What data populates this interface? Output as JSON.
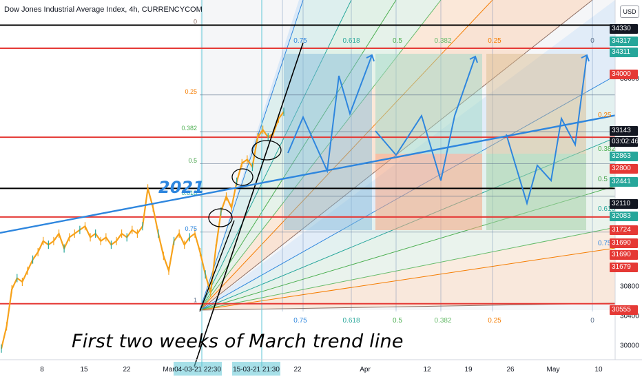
{
  "title": "Dow Jones Industrial Average Index, 4h, CURRENCYCOM",
  "currency_button": "USD",
  "annotations": {
    "year_label": "2021",
    "caption": "First two weeks of March trend line"
  },
  "chart_data": {
    "type": "line",
    "title": "Dow Jones Industrial Average Index, 4h, CURRENCYCOM",
    "y_range": [
      29800,
      34650
    ],
    "y_ticks": [
      33600,
      30800,
      30400,
      30000
    ],
    "x_ticks": [
      "8",
      "15",
      "22",
      "Mar",
      "04-03-21 22:30",
      "15-03-21 21:30",
      "22",
      "Apr",
      "12",
      "19",
      "26",
      "May",
      "10"
    ],
    "horizontal_levels": [
      {
        "value": 34311,
        "color": "#000000"
      },
      {
        "value": 34000,
        "color": "#e53935"
      },
      {
        "value": 32800,
        "color": "#e53935"
      },
      {
        "value": 32110,
        "color": "#000000"
      },
      {
        "value": 31724,
        "color": "#e53935"
      },
      {
        "value": 30555,
        "color": "#e53935"
      }
    ],
    "fib_levels_left": [
      {
        "label": "0",
        "value": 34311
      },
      {
        "label": "0.25",
        "value": 33370
      },
      {
        "label": "0.382",
        "value": 32875
      },
      {
        "label": "0.5",
        "value": 32441
      },
      {
        "label": "0.618",
        "value": 32004
      },
      {
        "label": "0.75",
        "value": 31520
      },
      {
        "label": "1",
        "value": 30555
      }
    ],
    "fan_labels_top": [
      "0.75",
      "0.618",
      "0.5",
      "0.382",
      "0.25",
      "0"
    ],
    "fan_labels_bottom": [
      "0.75",
      "0.618",
      "0.5",
      "0.382",
      "0.25",
      "0"
    ],
    "fib_levels_right": [
      "0.25",
      "0.382",
      "0.5",
      "0.618",
      "0.75"
    ],
    "price_tags": [
      {
        "value": "34330",
        "color": "#131722"
      },
      {
        "value": "34317",
        "color": "#26a69a"
      },
      {
        "value": "34311",
        "color": "#26a69a"
      },
      {
        "value": "34000",
        "color": "#e53935"
      },
      {
        "value": "33143",
        "color": "#131722"
      },
      {
        "value": "03:02:46",
        "color": "#131722"
      },
      {
        "value": "32863",
        "color": "#26a69a"
      },
      {
        "value": "32800",
        "color": "#e53935"
      },
      {
        "value": "32441",
        "color": "#26a69a"
      },
      {
        "value": "32110",
        "color": "#131722"
      },
      {
        "value": "32083",
        "color": "#26a69a"
      },
      {
        "value": "31724",
        "color": "#e53935"
      },
      {
        "value": "31690",
        "color": "#e53935"
      },
      {
        "value": "31690",
        "color": "#e53935"
      },
      {
        "value": "31679",
        "color": "#e53935"
      },
      {
        "value": "30555",
        "color": "#e53935"
      }
    ],
    "series": [
      {
        "values": [
          29950,
          30250,
          30750,
          30900,
          30850,
          31000,
          31150,
          31250,
          31400,
          31350,
          31400,
          31500,
          31300,
          31450,
          31500,
          31550,
          31600,
          31450,
          31500,
          31400,
          31450,
          31350,
          31400,
          31500,
          31450,
          31550,
          31500,
          31600,
          32110,
          31850,
          31500,
          31200,
          31000,
          31400,
          31500,
          31350,
          31450,
          31500,
          31250,
          30950,
          30700,
          31300,
          31800,
          32000,
          31850,
          32200,
          32450,
          32500,
          32400,
          32800,
          32900,
          32800,
          32850,
          33050,
          33143
        ]
      }
    ],
    "colors": {
      "candles": "#f7a21b",
      "trend_2021": "#2e86de",
      "projection": "#2e86de",
      "up": "#26a69a",
      "down": "#e53935"
    }
  }
}
